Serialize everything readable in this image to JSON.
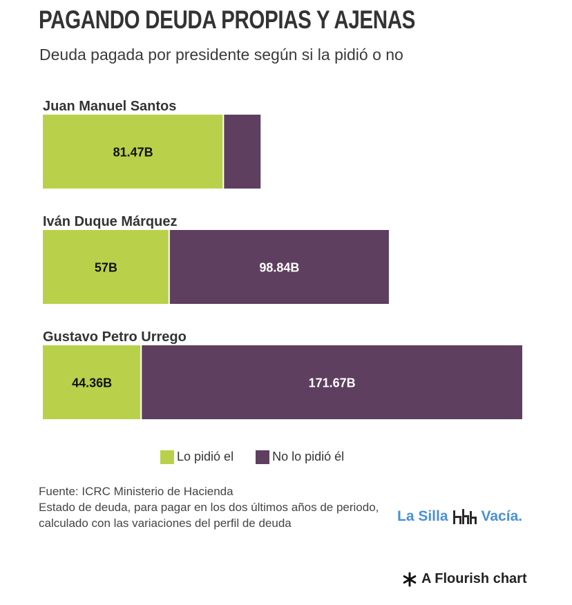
{
  "header": {
    "title": "PAGANDO DEUDA PROPIAS Y AJENAS",
    "subtitle": "Deuda pagada por presidente según si la pidió o no"
  },
  "colors": {
    "own": "#b9d14a",
    "other": "#5e3f5f"
  },
  "chart_data": {
    "type": "bar",
    "orientation": "horizontal",
    "stacked": true,
    "categories": [
      "Juan Manuel Santos",
      "Iván Duque Márquez",
      "Gustavo Petro Urrego"
    ],
    "series": [
      {
        "name": "Lo pidió el",
        "values": [
          81.47,
          57,
          44.36
        ],
        "labels": [
          "81.47B",
          "57B",
          "44.36B"
        ]
      },
      {
        "name": "No lo pidió él",
        "values": [
          16.5,
          98.84,
          171.67
        ],
        "labels": [
          "",
          "98.84B",
          "171.67B"
        ]
      }
    ],
    "xlim": [
      0,
      216.03
    ],
    "grid": false,
    "legend": "bottom"
  },
  "footer": {
    "source": "Fuente: ICRC Ministerio de Hacienda",
    "note": "Estado de deuda, para pagar en los dos últimos años de periodo, calculado con las variaciones del perfil de deuda"
  },
  "branding": {
    "logo_left": "La Silla",
    "logo_right": "Vacía.",
    "logo_icon": "chairs-icon",
    "flourish": "A Flourish chart",
    "flourish_icon": "asterisk-icon"
  }
}
